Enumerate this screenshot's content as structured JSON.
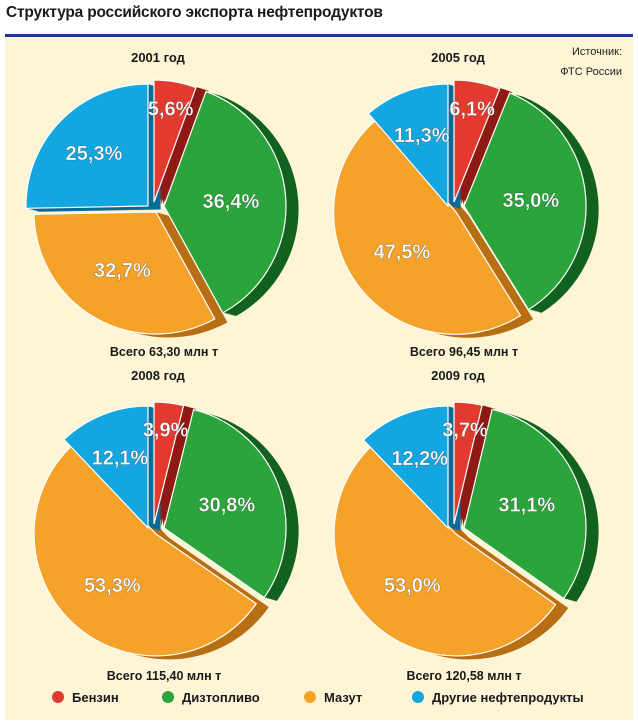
{
  "title": "Структура российского экспорта нефтепродуктов",
  "source": {
    "line1": "Источник:",
    "line2": "ФТС России"
  },
  "colors": {
    "benzin": "#e33a2f",
    "dizel": "#2aa43b",
    "mazut": "#f4a22a",
    "other": "#13a6e0"
  },
  "legend": [
    {
      "key": "benzin",
      "label": "Бензин"
    },
    {
      "key": "dizel",
      "label": "Дизтопливо"
    },
    {
      "key": "mazut",
      "label": "Мазут"
    },
    {
      "key": "other",
      "label": "Другие нефтепродукты"
    }
  ],
  "chart_data": [
    {
      "type": "pie",
      "title": "2001 год",
      "total": "Всего 63,30 млн т",
      "slices": [
        {
          "key": "benzin",
          "label": "5,6%",
          "value": 5.6
        },
        {
          "key": "dizel",
          "label": "36,4%",
          "value": 36.4
        },
        {
          "key": "mazut",
          "label": "32,7%",
          "value": 32.7
        },
        {
          "key": "other",
          "label": "25,3%",
          "value": 25.3
        }
      ]
    },
    {
      "type": "pie",
      "title": "2005 год",
      "total": "Всего 96,45 млн т",
      "slices": [
        {
          "key": "benzin",
          "label": "6,1%",
          "value": 6.1
        },
        {
          "key": "dizel",
          "label": "35,0%",
          "value": 35.0
        },
        {
          "key": "mazut",
          "label": "47,5%",
          "value": 47.5
        },
        {
          "key": "other",
          "label": "11,3%",
          "value": 11.3
        }
      ]
    },
    {
      "type": "pie",
      "title": "2008 год",
      "total": "Всего 115,40 млн т",
      "slices": [
        {
          "key": "benzin",
          "label": "3,9%",
          "value": 3.9
        },
        {
          "key": "dizel",
          "label": "30,8%",
          "value": 30.8
        },
        {
          "key": "mazut",
          "label": "53,3%",
          "value": 53.3
        },
        {
          "key": "other",
          "label": "12,1%",
          "value": 12.1
        }
      ]
    },
    {
      "type": "pie",
      "title": "2009 год",
      "total": "Всего 120,58 млн т",
      "slices": [
        {
          "key": "benzin",
          "label": "3,7%",
          "value": 3.7
        },
        {
          "key": "dizel",
          "label": "31,1%",
          "value": 31.1
        },
        {
          "key": "mazut",
          "label": "53,0%",
          "value": 53.0
        },
        {
          "key": "other",
          "label": "12,2%",
          "value": 12.2
        }
      ]
    }
  ]
}
